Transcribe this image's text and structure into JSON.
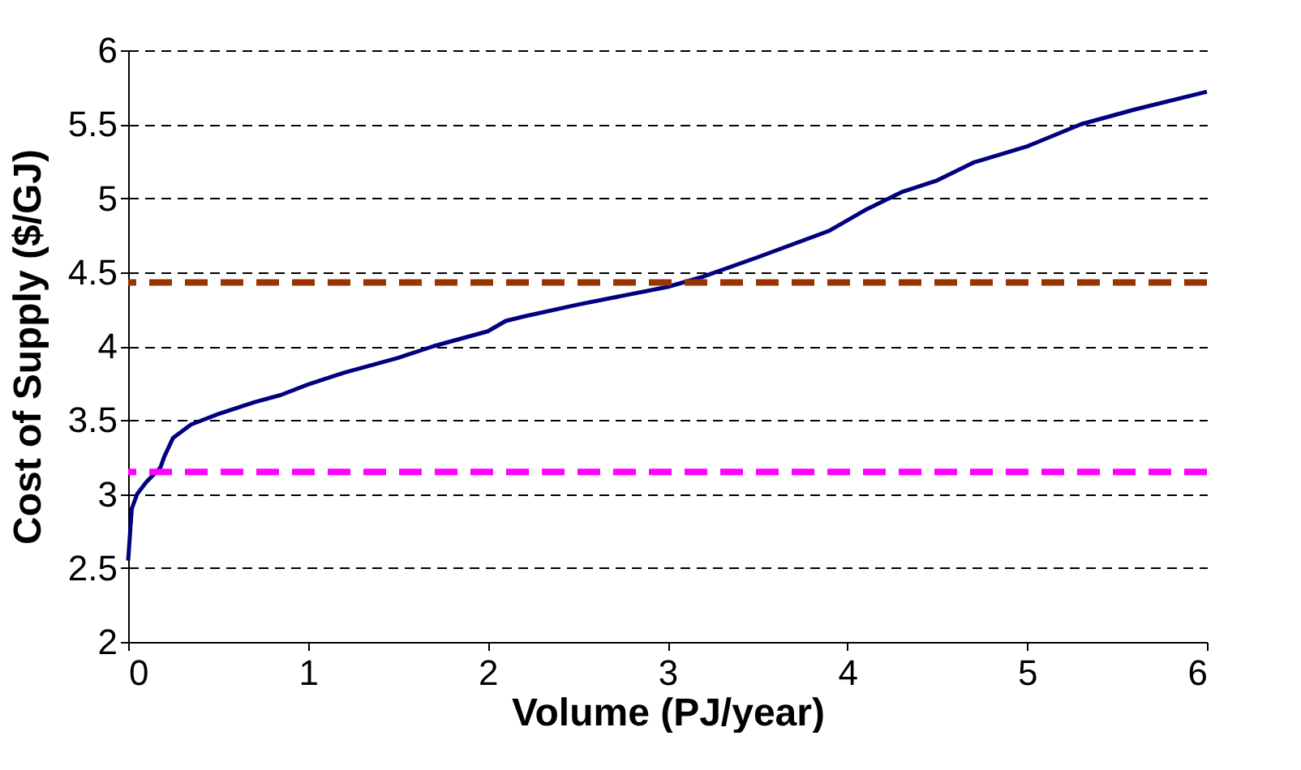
{
  "chart_data": {
    "type": "line",
    "xlabel": "Volume (PJ/year)",
    "ylabel": "Cost of Supply ($/GJ)",
    "xlim": [
      0,
      6
    ],
    "xticks": [
      0,
      1,
      2,
      3,
      4,
      5,
      6
    ],
    "ylim": [
      2,
      6
    ],
    "yticks": [
      2,
      2.5,
      3,
      3.5,
      4,
      4.5,
      5,
      5.5,
      6
    ],
    "grid": "y",
    "marker": "none",
    "line_style": "solid",
    "x": [
      0,
      0.02,
      0.05,
      0.1,
      0.18,
      0.2,
      0.25,
      0.35,
      0.5,
      0.7,
      0.85,
      1,
      1.2,
      1.5,
      1.7,
      2,
      2.1,
      2.2,
      2.5,
      3,
      3.2,
      3.5,
      3.9,
      4.1,
      4.3,
      4.5,
      4.7,
      5,
      5.3,
      5.6,
      6
    ],
    "series": [
      {
        "color": "#000080",
        "values": [
          2.55,
          2.9,
          3.0,
          3.08,
          3.18,
          3.25,
          3.38,
          3.47,
          3.54,
          3.62,
          3.67,
          3.74,
          3.82,
          3.92,
          4.0,
          4.1,
          4.17,
          4.2,
          4.28,
          4.4,
          4.47,
          4.6,
          4.78,
          4.92,
          5.04,
          5.12,
          5.24,
          5.35,
          5.5,
          5.6,
          5.72
        ]
      }
    ],
    "ref_lines": [
      {
        "axis": "y",
        "value": 4.43,
        "color": "#993300",
        "line_style": "dashed"
      },
      {
        "axis": "y",
        "value": 3.15,
        "color": "#ff00ff",
        "line_style": "dashed"
      }
    ]
  }
}
